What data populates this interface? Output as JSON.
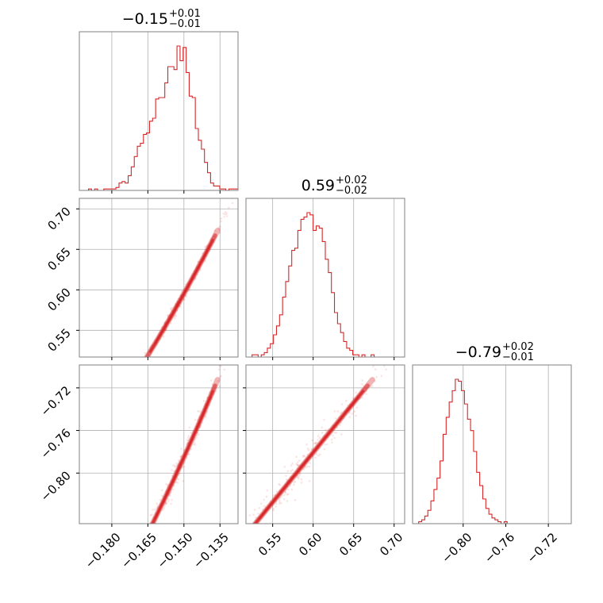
{
  "chart_data": {
    "type": "corner",
    "color": "#d62728",
    "grid": true,
    "parameters": [
      {
        "title_value": "−0.15",
        "title_plus": "+0.01",
        "title_minus": "−0.01",
        "range": [
          -0.1935,
          -0.1275
        ],
        "ticks": [
          -0.18,
          -0.165,
          -0.15,
          -0.135
        ],
        "tick_labels": [
          "−0.180",
          "−0.165",
          "−0.150",
          "−0.135"
        ],
        "histogram": [
          0,
          0,
          0,
          1,
          0,
          1,
          0,
          0,
          1,
          1,
          1,
          1,
          2,
          5,
          6,
          5,
          10,
          16,
          23,
          30,
          32,
          38,
          39,
          47,
          49,
          62,
          63,
          63,
          73,
          84,
          84,
          82,
          98,
          88,
          97,
          80,
          64,
          63,
          42,
          34,
          28,
          19,
          12,
          5,
          3,
          3,
          1,
          1,
          0,
          1,
          1,
          1
        ]
      },
      {
        "title_value": "0.59",
        "title_plus": "+0.02",
        "title_minus": "−0.02",
        "range": [
          0.517,
          0.713
        ],
        "ticks": [
          0.55,
          0.6,
          0.65,
          0.7
        ],
        "tick_labels": [
          "0.55",
          "0.60",
          "0.65",
          "0.70"
        ],
        "histogram": [
          0,
          0,
          1,
          1,
          0,
          1,
          2,
          4,
          6,
          10,
          14,
          19,
          27,
          34,
          41,
          48,
          49,
          57,
          62,
          63,
          65,
          64,
          57,
          59,
          58,
          52,
          44,
          38,
          29,
          20,
          15,
          11,
          7,
          4,
          3,
          1,
          1,
          0,
          1,
          0,
          0,
          1,
          0,
          0,
          0,
          0,
          0,
          0,
          0,
          0,
          0,
          0
        ]
      },
      {
        "title_value": "−0.79",
        "title_plus": "+0.02",
        "title_minus": "−0.01",
        "range": [
          -0.8475,
          -0.6985
        ],
        "ticks": [
          -0.8,
          -0.76,
          -0.72
        ],
        "tick_labels": [
          "−0.80",
          "−0.76",
          "−0.72"
        ],
        "histogram": [
          0,
          0,
          1,
          2,
          4,
          7,
          12,
          18,
          24,
          33,
          47,
          56,
          64,
          70,
          76,
          75,
          70,
          63,
          55,
          49,
          38,
          27,
          20,
          13,
          8,
          5,
          3,
          2,
          1,
          0,
          1,
          0,
          0,
          0,
          0,
          0,
          0,
          0,
          0,
          0,
          0,
          0,
          0,
          0,
          0,
          0,
          0,
          0,
          0,
          0,
          0,
          0
        ]
      }
    ],
    "posterior": {
      "center": [
        -0.151,
        0.59,
        -0.79
      ],
      "lower_slope": 0.00144,
      "upper_slope": 0.00219,
      "slope_b": 5.3,
      "slope_c": 4.95,
      "scatter_b": 0.004,
      "scatter_c": 0.006
    }
  }
}
